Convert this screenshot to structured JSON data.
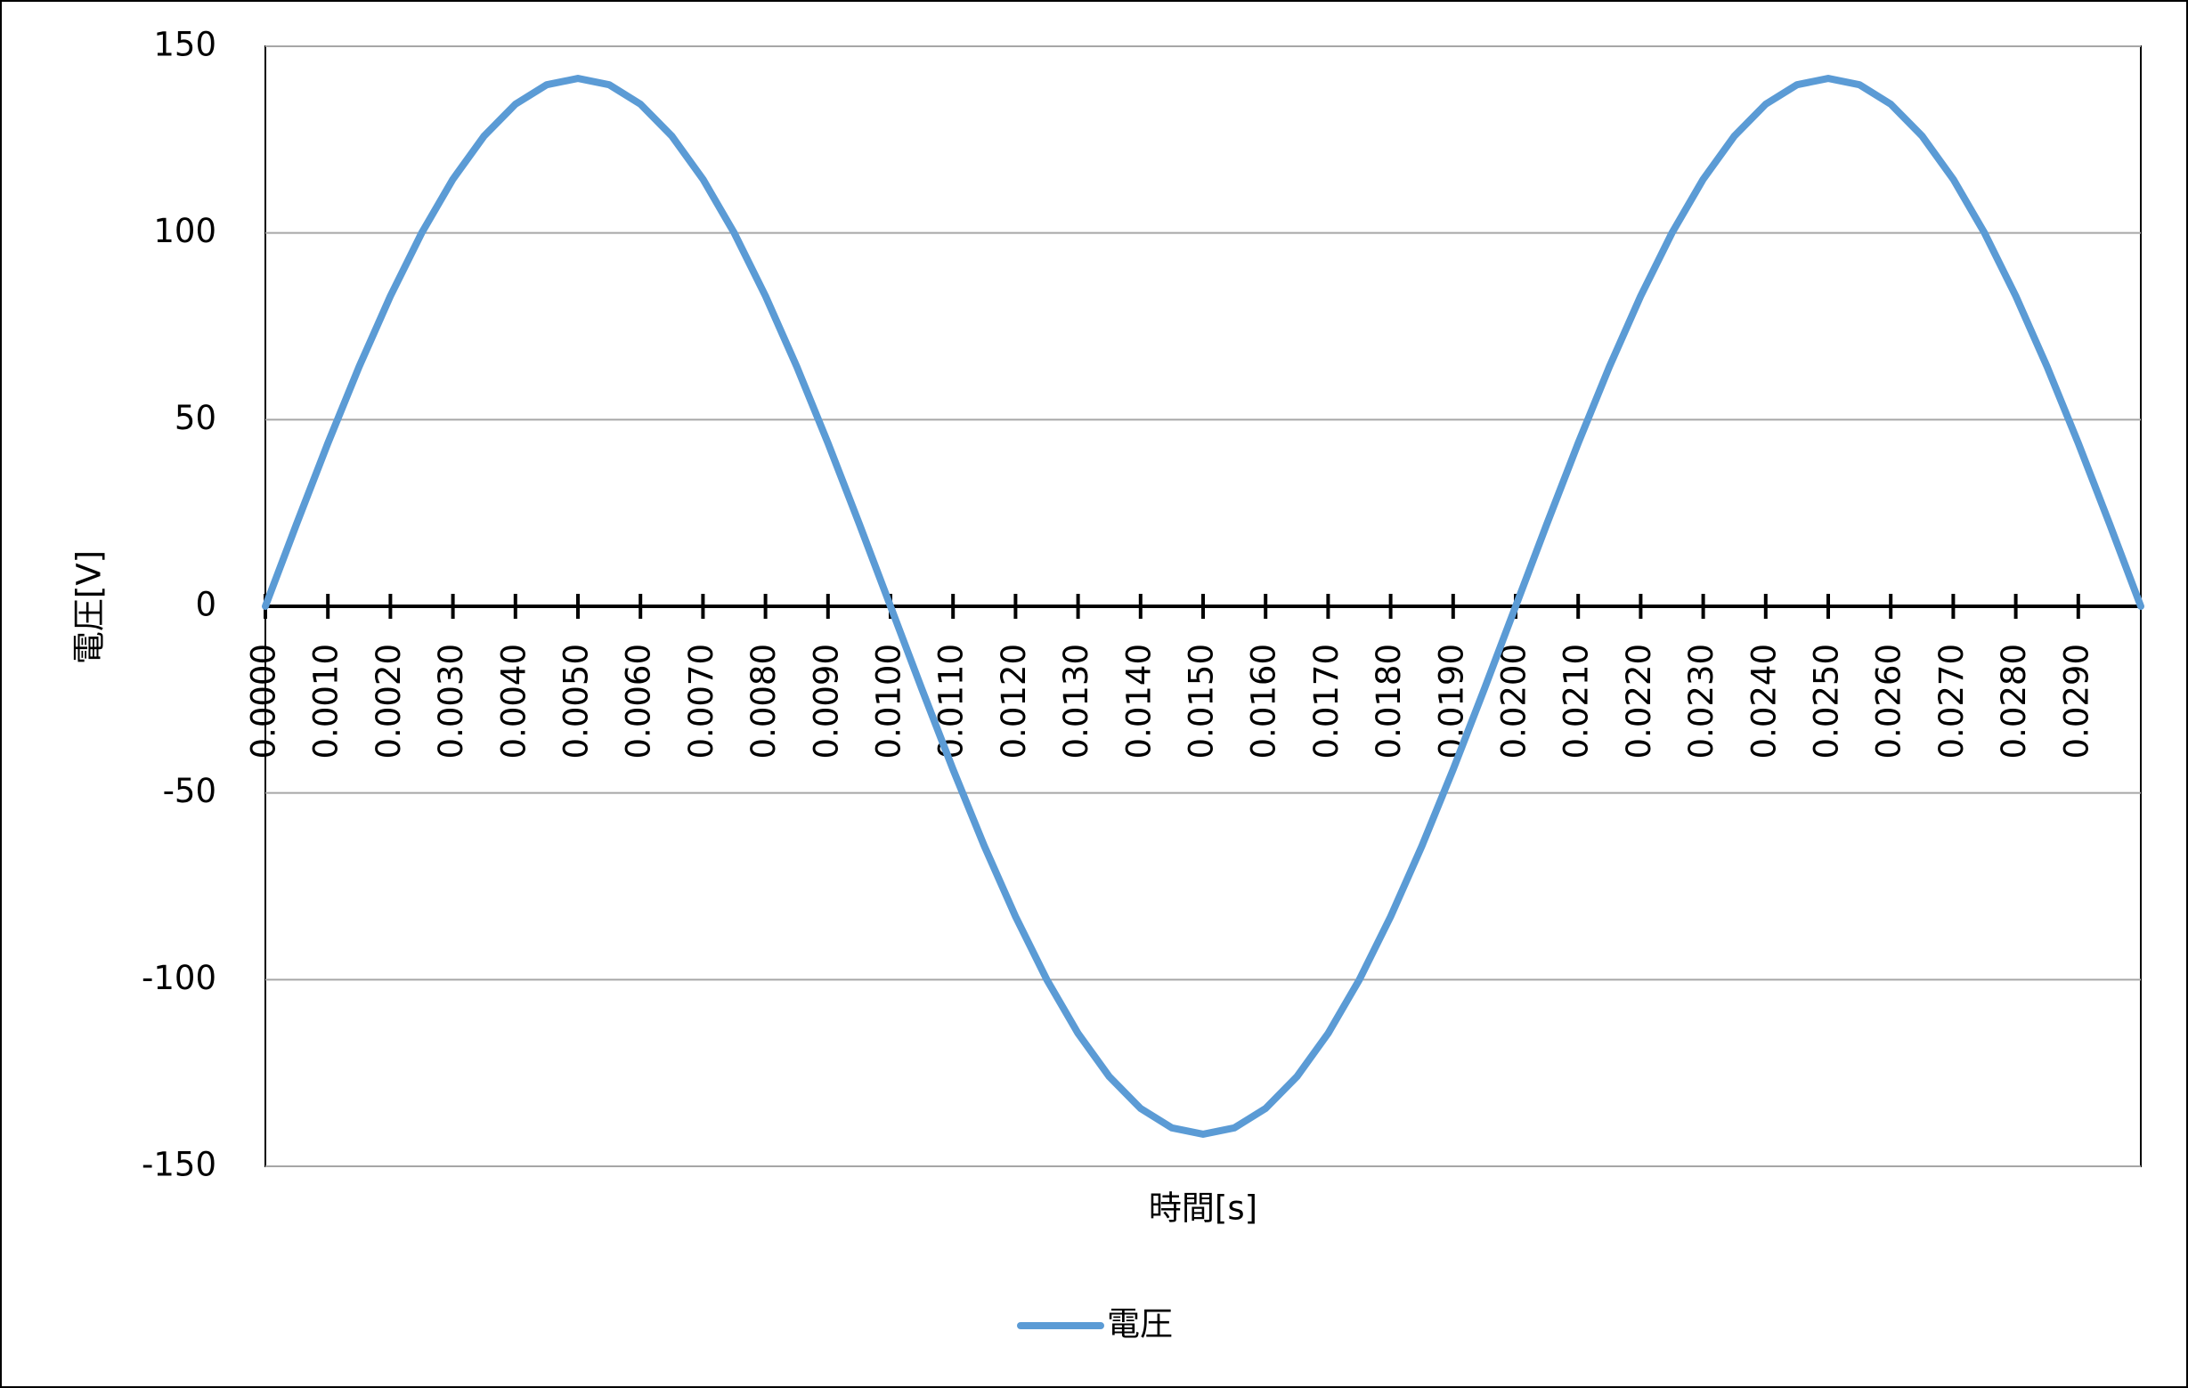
{
  "chart_data": {
    "type": "line",
    "x_label": "時間[s]",
    "y_label": "電圧[V]",
    "x": [
      0,
      0.0005,
      0.001,
      0.0015,
      0.002,
      0.0025,
      0.003,
      0.0035,
      0.004,
      0.0045,
      0.005,
      0.0055,
      0.006,
      0.0065,
      0.007,
      0.0075,
      0.008,
      0.0085,
      0.009,
      0.0095,
      0.01,
      0.0105,
      0.011,
      0.0115,
      0.012,
      0.0125,
      0.013,
      0.0135,
      0.014,
      0.0145,
      0.015,
      0.0155,
      0.016,
      0.0165,
      0.017,
      0.0175,
      0.018,
      0.0185,
      0.019,
      0.0195,
      0.02,
      0.0205,
      0.021,
      0.0215,
      0.022,
      0.0225,
      0.023,
      0.0235,
      0.024,
      0.0245,
      0.025,
      0.0255,
      0.026,
      0.0265,
      0.027,
      0.0275,
      0.028,
      0.0285,
      0.029,
      0.0295,
      0.03
    ],
    "series": [
      {
        "name": "電圧",
        "color": "#5b9bd5",
        "values": [
          0,
          22.1,
          43.7,
          64.2,
          83.1,
          100,
          114.4,
          126,
          134.5,
          139.7,
          141.4,
          139.7,
          134.5,
          126,
          114.4,
          100,
          83.1,
          64.2,
          43.7,
          22.1,
          0,
          -22.1,
          -43.7,
          -64.2,
          -83.1,
          -100,
          -114.4,
          -126,
          -134.5,
          -139.7,
          -141.4,
          -139.7,
          -134.5,
          -126,
          -114.4,
          -100,
          -83.1,
          -64.2,
          -43.7,
          -22.1,
          0,
          22.1,
          43.7,
          64.2,
          83.1,
          100,
          114.4,
          126,
          134.5,
          139.7,
          141.4,
          139.7,
          134.5,
          126,
          114.4,
          100,
          83.1,
          64.2,
          43.7,
          22.1,
          0
        ]
      }
    ],
    "xlim": [
      0,
      0.03
    ],
    "xticks": [
      {
        "value": 0,
        "label": "0.0000"
      },
      {
        "value": 0.001,
        "label": "0.0010"
      },
      {
        "value": 0.002,
        "label": "0.0020"
      },
      {
        "value": 0.003,
        "label": "0.0030"
      },
      {
        "value": 0.004,
        "label": "0.0040"
      },
      {
        "value": 0.005,
        "label": "0.0050"
      },
      {
        "value": 0.006,
        "label": "0.0060"
      },
      {
        "value": 0.007,
        "label": "0.0070"
      },
      {
        "value": 0.008,
        "label": "0.0080"
      },
      {
        "value": 0.009,
        "label": "0.0090"
      },
      {
        "value": 0.01,
        "label": "0.0100"
      },
      {
        "value": 0.011,
        "label": "0.0110"
      },
      {
        "value": 0.012,
        "label": "0.0120"
      },
      {
        "value": 0.013,
        "label": "0.0130"
      },
      {
        "value": 0.014,
        "label": "0.0140"
      },
      {
        "value": 0.015,
        "label": "0.0150"
      },
      {
        "value": 0.016,
        "label": "0.0160"
      },
      {
        "value": 0.017,
        "label": "0.0170"
      },
      {
        "value": 0.018,
        "label": "0.0180"
      },
      {
        "value": 0.019,
        "label": "0.0190"
      },
      {
        "value": 0.02,
        "label": "0.0200"
      },
      {
        "value": 0.021,
        "label": "0.0210"
      },
      {
        "value": 0.022,
        "label": "0.0220"
      },
      {
        "value": 0.023,
        "label": "0.0230"
      },
      {
        "value": 0.024,
        "label": "0.0240"
      },
      {
        "value": 0.025,
        "label": "0.0250"
      },
      {
        "value": 0.026,
        "label": "0.0260"
      },
      {
        "value": 0.027,
        "label": "0.0270"
      },
      {
        "value": 0.028,
        "label": "0.0280"
      },
      {
        "value": 0.029,
        "label": "0.0290"
      }
    ],
    "ylim": [
      -150,
      150
    ],
    "yticks": [
      -150,
      -100,
      -50,
      0,
      50,
      100,
      150
    ],
    "grid": true,
    "legend": "bottom"
  }
}
